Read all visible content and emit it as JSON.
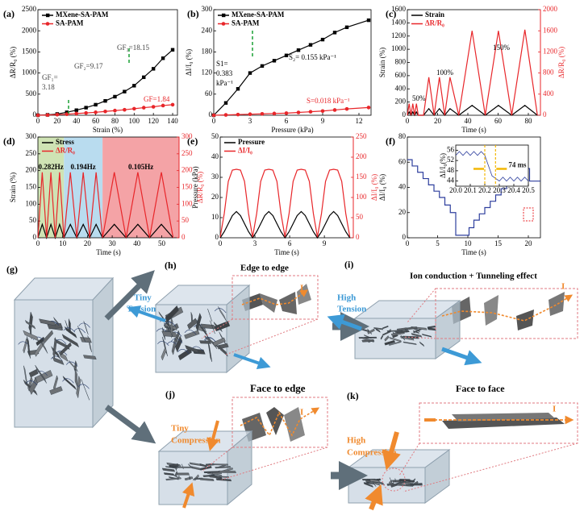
{
  "chart_data": [
    {
      "type": "line",
      "label": "(a)",
      "xlabel": "Strain (%)",
      "ylabel": "ΔR/R₀ (%)",
      "xlim": [
        0,
        145
      ],
      "xticks": [
        0,
        20,
        40,
        60,
        80,
        100,
        120,
        140
      ],
      "ylim": [
        0,
        2500
      ],
      "yticks": [
        0,
        500,
        1000,
        1500,
        2000,
        2500
      ],
      "legend": "upper left",
      "x": [
        0,
        10,
        20,
        30,
        40,
        50,
        60,
        70,
        80,
        90,
        100,
        110,
        120,
        130,
        140
      ],
      "series": [
        {
          "name": "MXene-SA-PAM",
          "color": "#000000",
          "marker": "square",
          "values": [
            0,
            10,
            30,
            70,
            120,
            180,
            250,
            340,
            440,
            560,
            700,
            900,
            1100,
            1350,
            1550
          ]
        },
        {
          "name": "SA-PAM",
          "color": "#e8262a",
          "marker": "circle",
          "values": [
            0,
            5,
            15,
            25,
            40,
            55,
            70,
            90,
            110,
            130,
            155,
            180,
            200,
            230,
            250
          ]
        }
      ],
      "annotations": [
        {
          "text": "GF₁=",
          "color": "#444444"
        },
        {
          "text": "3.18",
          "color": "#444444"
        },
        {
          "text": "GF₂=9.17",
          "color": "#444444"
        },
        {
          "text": "GF₃=18.15",
          "color": "#444444"
        },
        {
          "text": "GF=1.84",
          "color": "#e8262a"
        }
      ]
    },
    {
      "type": "line",
      "label": "(b)",
      "xlabel": "Pressure (kPa)",
      "ylabel": "ΔI/I₀ (%)",
      "xlim": [
        0,
        13
      ],
      "xticks": [
        0,
        3,
        6,
        9,
        12
      ],
      "ylim": [
        0,
        300
      ],
      "yticks": [
        0,
        60,
        120,
        180,
        240,
        300
      ],
      "legend": "upper left",
      "x": [
        0,
        1,
        2,
        3,
        4,
        5,
        6,
        7,
        8,
        9,
        10,
        11,
        12.8
      ],
      "series": [
        {
          "name": "MXene-SA-PAM",
          "color": "#000000",
          "marker": "square",
          "values": [
            0,
            35,
            75,
            120,
            140,
            155,
            170,
            185,
            200,
            215,
            235,
            250,
            270
          ]
        },
        {
          "name": "SA-PAM",
          "color": "#e8262a",
          "marker": "circle",
          "values": [
            0,
            1,
            2,
            3,
            4,
            5,
            6,
            8,
            10,
            12,
            15,
            18,
            22
          ]
        }
      ],
      "annotations": [
        {
          "text": "S1=",
          "color": "#000000"
        },
        {
          "text": "0.383",
          "color": "#000000"
        },
        {
          "text": "kPa⁻¹",
          "color": "#000000"
        },
        {
          "text": "S₂= 0.155 kPa⁻¹",
          "color": "#000000"
        },
        {
          "text": "S=0.018 kPa⁻¹",
          "color": "#e8262a"
        }
      ]
    },
    {
      "type": "line",
      "label": "(c)",
      "xlabel": "Time (s)",
      "ylabel": "Strain (%)",
      "y2label": "ΔR/R₀ (%)",
      "y2color": "#e8262a",
      "xlim": [
        0,
        88
      ],
      "xticks": [
        0,
        20,
        40,
        60,
        80
      ],
      "ylim": [
        0,
        1600
      ],
      "yticks": [
        0,
        200,
        400,
        600,
        800,
        1000,
        1200,
        1400,
        1600
      ],
      "y2lim": [
        0,
        2000
      ],
      "y2ticks": [
        0,
        400,
        800,
        1200,
        1600,
        2000
      ],
      "legend": "upper left",
      "legend_color_text": true,
      "x": [
        0,
        1.2,
        2.4,
        3.6,
        4.8,
        6,
        7.2,
        10.7,
        14.2,
        17.7,
        21.2,
        24.7,
        28.2,
        34,
        42.8,
        51.5,
        60.2,
        69,
        77.7,
        86
      ],
      "series": [
        {
          "name": "Strain",
          "color": "#000000",
          "values": [
            0,
            50,
            0,
            50,
            0,
            50,
            0,
            0,
            100,
            0,
            100,
            0,
            100,
            0,
            150,
            0,
            150,
            0,
            150,
            0
          ]
        },
        {
          "name": "ΔR/R₀",
          "color": "#e8262a",
          "axis": "y2",
          "values": [
            0,
            220,
            0,
            220,
            0,
            220,
            0,
            0,
            720,
            0,
            720,
            0,
            720,
            0,
            1600,
            0,
            1600,
            0,
            1620,
            0
          ]
        }
      ],
      "annotations": [
        {
          "text": "50%",
          "color": "#000000"
        },
        {
          "text": "100%",
          "color": "#000000"
        },
        {
          "text": "150%",
          "color": "#000000"
        }
      ]
    },
    {
      "type": "line",
      "label": "(d)",
      "xlabel": "Time (s)",
      "ylabel": "Strain (%)",
      "y2label": "ΔR/R₀ (%)",
      "y2color": "#e8262a",
      "xlim": [
        0,
        57
      ],
      "xticks": [
        0,
        10,
        20,
        30,
        40,
        50
      ],
      "ylim": [
        0,
        300
      ],
      "yticks": [
        0,
        50,
        100,
        150,
        200,
        250,
        300
      ],
      "y2lim": [
        0,
        300
      ],
      "y2ticks": [
        0,
        50,
        100,
        150,
        200,
        250,
        300
      ],
      "legend": "upper left",
      "legend_color_text": true,
      "bands": [
        {
          "label": "0.282Hz",
          "from": 0,
          "to": 10.5,
          "color": "#cfe3b4"
        },
        {
          "label": "0.194Hz",
          "from": 10.5,
          "to": 26.1,
          "color": "#b9dcef"
        },
        {
          "label": "0.105Hz",
          "from": 26.1,
          "to": 57,
          "color": "#f4a3a6"
        }
      ],
      "x": [
        0,
        1.75,
        3.5,
        5.25,
        7,
        8.75,
        10.5,
        13.1,
        15.7,
        18.3,
        20.9,
        23.5,
        26.1,
        30.85,
        35.6,
        40.35,
        45.1,
        49.85,
        54.6
      ],
      "series": [
        {
          "name": "Stress",
          "color": "#000000",
          "values": [
            0,
            40,
            0,
            40,
            0,
            40,
            0,
            40,
            0,
            40,
            0,
            40,
            0,
            40,
            0,
            40,
            0,
            40,
            0
          ]
        },
        {
          "name": "ΔR/R₀",
          "color": "#e8262a",
          "axis": "y2",
          "values": [
            0,
            195,
            0,
            195,
            0,
            195,
            0,
            195,
            0,
            195,
            0,
            195,
            0,
            195,
            0,
            195,
            0,
            195,
            0
          ]
        }
      ]
    },
    {
      "type": "line",
      "label": "(e)",
      "xlabel": "Time (s)",
      "ylabel": "Pressure (kPa)",
      "y2label": "ΔI/I₀ (%)",
      "y2color": "#e8262a",
      "xlim": [
        0,
        11.5
      ],
      "xticks": [
        0,
        3,
        6,
        9
      ],
      "ylim": [
        0,
        50
      ],
      "yticks": [
        0,
        10,
        20,
        30,
        40,
        50
      ],
      "y2lim": [
        0,
        250
      ],
      "y2ticks": [
        0,
        50,
        100,
        150,
        200,
        250
      ],
      "legend": "upper left",
      "legend_color_text": true,
      "x": [
        0,
        0.35,
        0.7,
        1.05,
        1.4,
        1.75,
        2.1,
        2.45,
        2.8,
        3.15,
        3.5,
        3.85,
        4.2,
        4.55,
        4.9,
        5.25,
        5.6,
        5.95,
        6.3,
        6.65,
        7,
        7.35,
        7.7,
        8.05,
        8.4,
        8.75,
        9.1,
        9.45,
        9.8,
        10.15,
        10.5,
        10.85,
        11.2
      ],
      "series": [
        {
          "name": "Pressure",
          "color": "#000000",
          "values": [
            0,
            3,
            7,
            11,
            13,
            11,
            7,
            3,
            0,
            3,
            7,
            11,
            13,
            11,
            7,
            3,
            0,
            3,
            7,
            11,
            13,
            11,
            7,
            3,
            0,
            3,
            7,
            11,
            13,
            11,
            7,
            3,
            0
          ]
        },
        {
          "name": "ΔI/I₀",
          "color": "#e8262a",
          "axis": "y2",
          "values": [
            2,
            60,
            140,
            168,
            170,
            168,
            140,
            60,
            2,
            60,
            140,
            168,
            170,
            168,
            140,
            60,
            2,
            60,
            140,
            168,
            170,
            168,
            140,
            60,
            2,
            60,
            140,
            168,
            170,
            168,
            140,
            60,
            2
          ]
        }
      ]
    },
    {
      "type": "line",
      "label": "(f)",
      "xlabel": "Time (s)",
      "ylabel": "ΔI/I₀ (%)",
      "xlim": [
        0,
        22
      ],
      "xticks": [
        0,
        5,
        10,
        15,
        20
      ],
      "ylim": [
        0,
        80
      ],
      "yticks": [
        0,
        20,
        40,
        60,
        80
      ],
      "x": [
        0,
        0.8,
        0.8,
        1.7,
        1.7,
        2.6,
        2.6,
        3.5,
        3.5,
        4.4,
        4.4,
        5.3,
        5.3,
        6.2,
        6.2,
        7.1,
        7.1,
        8,
        8,
        10.2,
        10.2,
        11,
        11,
        11.9,
        11.9,
        12.8,
        12.8,
        13.7,
        13.7,
        14.6,
        14.6,
        15.5,
        15.5,
        16.4,
        16.4,
        17.3,
        17.3,
        18.2,
        18.2,
        19.1,
        19.1,
        20.2,
        20.2,
        22
      ],
      "series": [
        {
          "color": "#2e3f9e",
          "values": [
            62,
            62,
            57,
            57,
            52,
            52,
            47,
            47,
            42,
            42,
            37,
            37,
            32,
            32,
            26,
            26,
            20,
            20,
            2,
            2,
            8,
            8,
            14,
            14,
            19,
            19,
            24,
            24,
            29,
            29,
            34,
            34,
            39,
            39,
            43,
            43,
            48,
            48,
            52,
            52,
            55,
            55,
            45,
            45
          ]
        }
      ],
      "inset": {
        "type": "line",
        "ylabel": "ΔI/I₀(%)",
        "xlim": [
          20,
          20.5
        ],
        "xticks": [
          {
            "value": 20,
            "label": "20.0"
          },
          20.1,
          20.2,
          20.3,
          20.4,
          20.5
        ],
        "ylim": [
          42,
          58
        ],
        "yticks": [
          44,
          48,
          52,
          56
        ],
        "x": [
          20,
          20.025,
          20.05,
          20.075,
          20.1,
          20.125,
          20.15,
          20.175,
          20.2,
          20.225,
          20.25,
          20.275,
          20.3,
          20.325,
          20.35,
          20.375,
          20.4,
          20.425,
          20.45,
          20.475,
          20.5
        ],
        "series": [
          {
            "color": "#2e3f9e",
            "values": [
              54,
              55.5,
              54,
              55.5,
              54,
              55.5,
              54,
              55.5,
              54,
              50,
              46,
              45,
              44,
              45.5,
              44,
              45.5,
              44,
              45.5,
              44,
              45.5,
              44
            ]
          }
        ],
        "markers": [
          20.2,
          20.274
        ],
        "marker_color": "#f2b705",
        "annotation": {
          "text": "74 ms",
          "color": "#1a1a1a"
        }
      }
    }
  ],
  "schematic": {
    "g": {
      "label": "(g)"
    },
    "h": {
      "label": "(h)",
      "title": "Edge to edge",
      "force": [
        "Tiny",
        "Tension"
      ],
      "color": "#3d9ad6",
      "current": "I"
    },
    "i": {
      "label": "(i)",
      "title": "Ion conduction + Tunneling effect",
      "force": [
        "High",
        "Tension"
      ],
      "color": "#3d9ad6",
      "current": "I"
    },
    "j": {
      "label": "(j)",
      "title": "Face to edge",
      "force": [
        "Tiny",
        "Compression"
      ],
      "color": "#f08a2e",
      "current": "I"
    },
    "k": {
      "label": "(k)",
      "title": "Face to face",
      "force": [
        "High",
        "Compression"
      ],
      "color": "#f08a2e",
      "current": "I"
    }
  }
}
